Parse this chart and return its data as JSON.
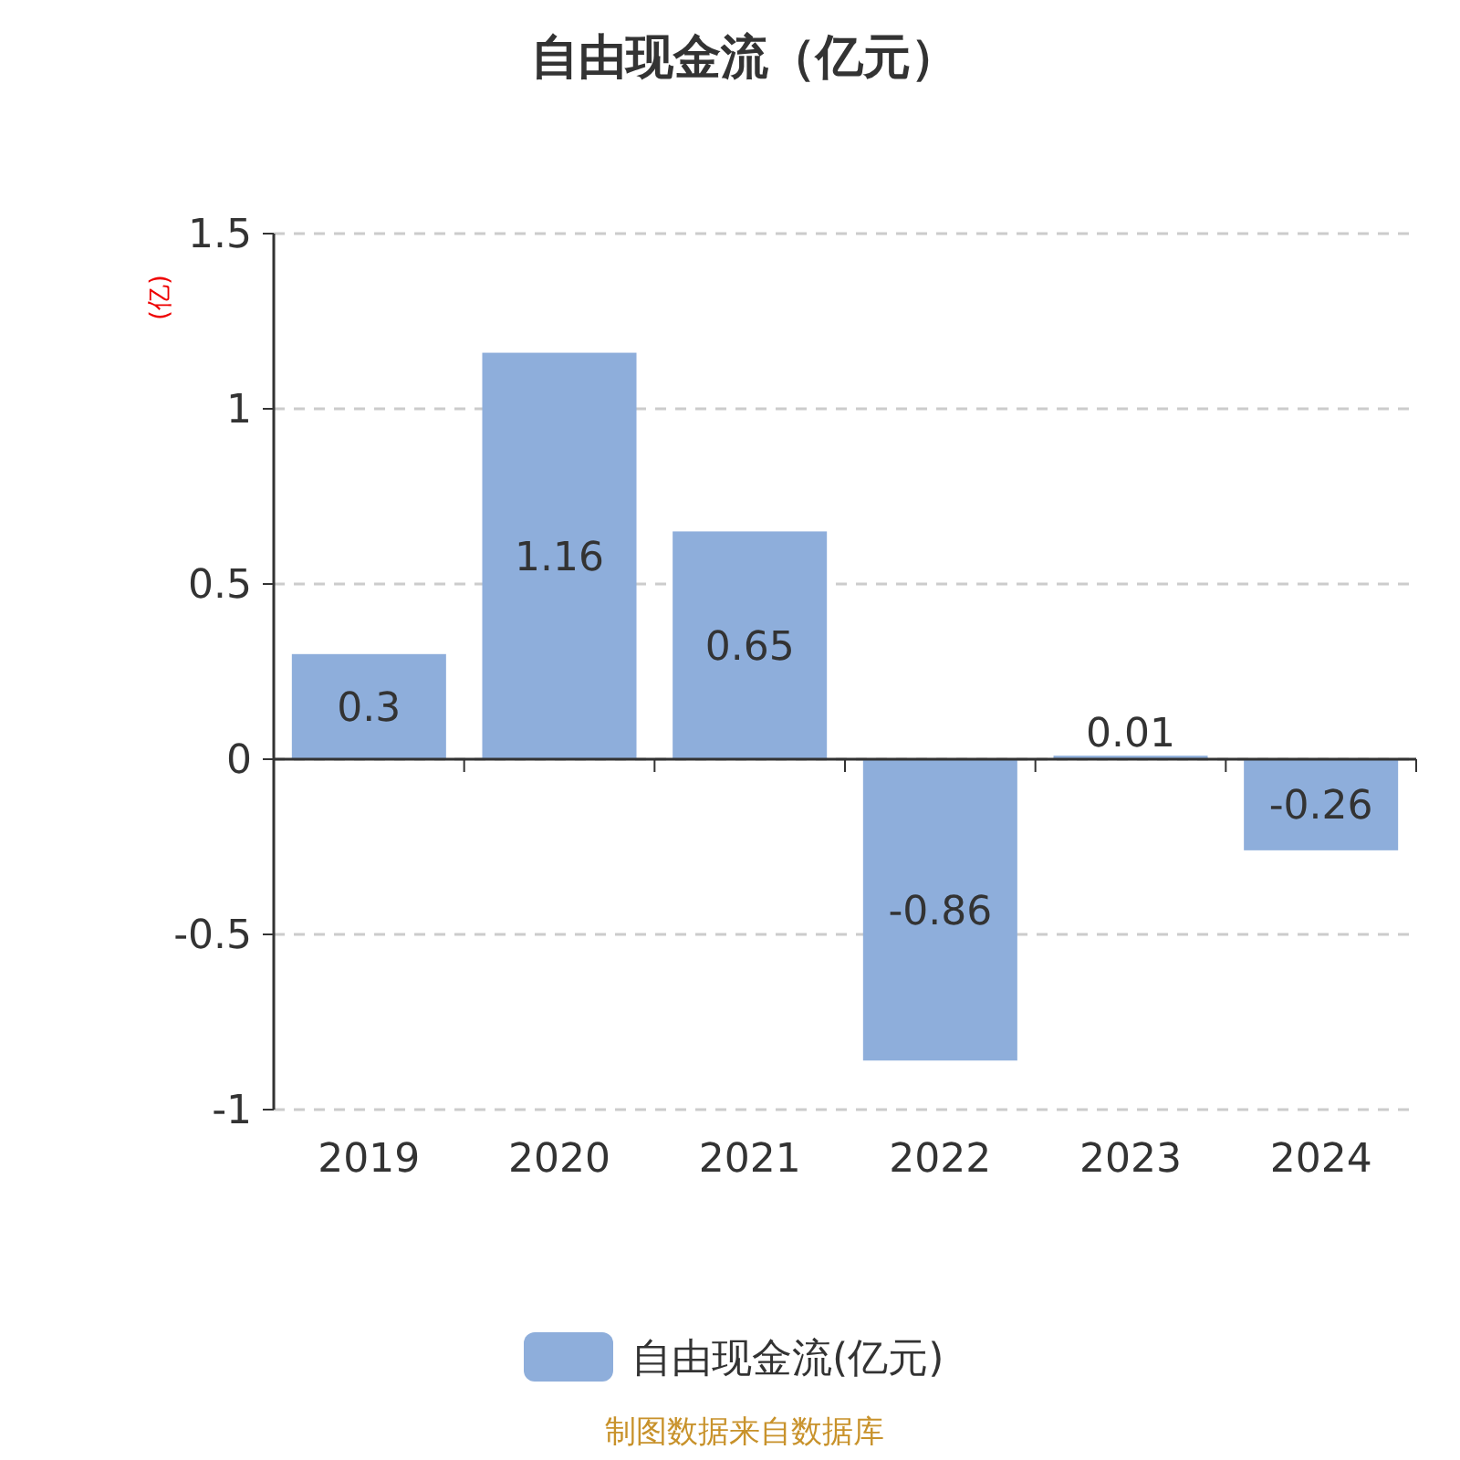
{
  "chart_data": {
    "type": "bar",
    "title": "自由现金流（亿元）",
    "ylabel": "(亿)",
    "categories": [
      "2019",
      "2020",
      "2021",
      "2022",
      "2023",
      "2024"
    ],
    "series": [
      {
        "name": "自由现金流(亿元)",
        "color": "#8eaedb",
        "values": [
          0.3,
          1.16,
          0.65,
          -0.86,
          0.01,
          -0.26
        ]
      }
    ],
    "ylim": [
      -1,
      1.5
    ],
    "yticks": [
      -1,
      -0.5,
      0,
      0.5,
      1,
      1.5
    ],
    "grid": "y",
    "legend": "bottom",
    "data_labels": true,
    "annotations": [
      "制图数据来自数据库"
    ]
  }
}
